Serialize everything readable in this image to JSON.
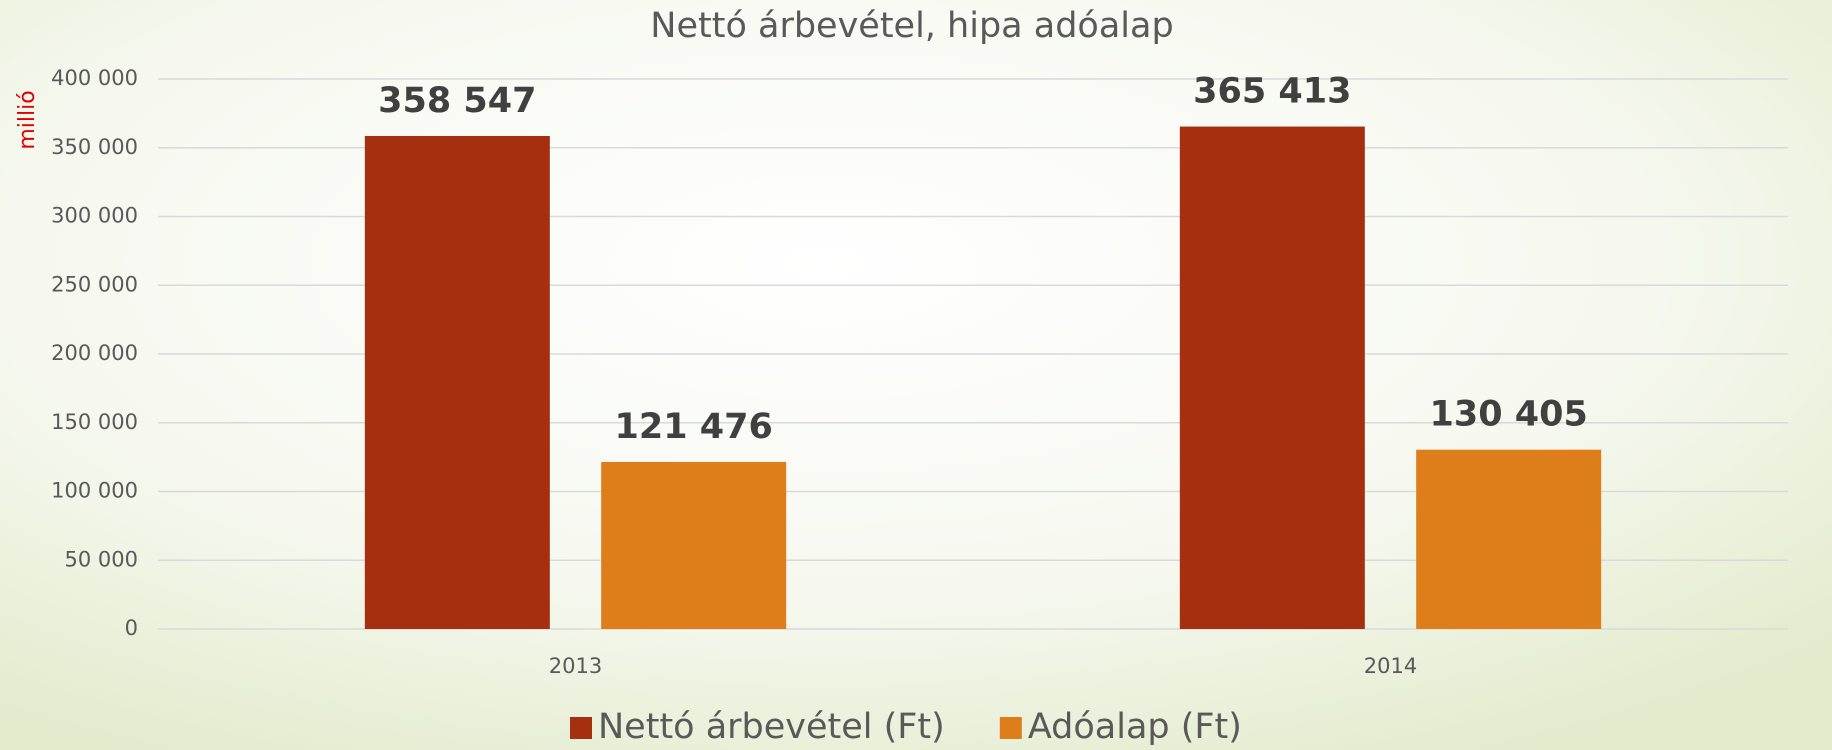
{
  "chart_data": {
    "type": "bar",
    "title": "Nettó árbevétel, hipa adóalap",
    "y_label": "millió",
    "categories": [
      "2013",
      "2014"
    ],
    "series": [
      {
        "name": "Nettó árbevétel (Ft)",
        "color": "#a52f0e",
        "values": [
          358547,
          365413
        ],
        "value_labels": [
          "358 547",
          "365 413"
        ]
      },
      {
        "name": "Adóalap (Ft)",
        "color": "#de7e1a",
        "values": [
          121476,
          130405
        ],
        "value_labels": [
          "121 476",
          "130 405"
        ]
      }
    ],
    "ylim": [
      0,
      400000
    ],
    "yticks": [
      0,
      {
        "value": 50000,
        "label": "50 000"
      },
      {
        "value": 100000,
        "label": "100 000"
      },
      {
        "value": 150000,
        "label": "150 000"
      },
      {
        "value": 200000,
        "label": "200 000"
      },
      {
        "value": 250000,
        "label": "250 000"
      },
      {
        "value": 300000,
        "label": "300 000"
      },
      {
        "value": 350000,
        "label": "350 000"
      },
      {
        "value": 400000,
        "label": "400 000"
      }
    ],
    "grid": true,
    "legend": "bottom"
  }
}
